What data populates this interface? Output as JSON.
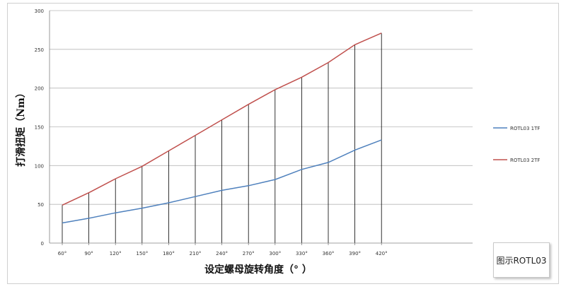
{
  "caption": "图示ROTL03",
  "chart_data": {
    "type": "line",
    "xlabel": "设定螺母旋转角度（° ）",
    "ylabel": "打滑扭矩（Nm）",
    "categories": [
      "60°",
      "90°",
      "120°",
      "150°",
      "180°",
      "210°",
      "240°",
      "270°",
      "300°",
      "330°",
      "360°",
      "390°",
      "420°"
    ],
    "ylim": [
      0,
      300
    ],
    "yticks": [
      0,
      50,
      100,
      150,
      200,
      250,
      300
    ],
    "grid": true,
    "legend_position": "right",
    "series": [
      {
        "name": "ROTL03 1TF",
        "color": "#4f81bd",
        "values": [
          26,
          32,
          39,
          45,
          52,
          60,
          68,
          74,
          82,
          95,
          104,
          120,
          133
        ]
      },
      {
        "name": "ROTL03 2TF",
        "color": "#c0504d",
        "values": [
          49,
          65,
          83,
          99,
          119,
          139,
          159,
          179,
          198,
          214,
          233,
          256,
          271
        ]
      }
    ]
  }
}
